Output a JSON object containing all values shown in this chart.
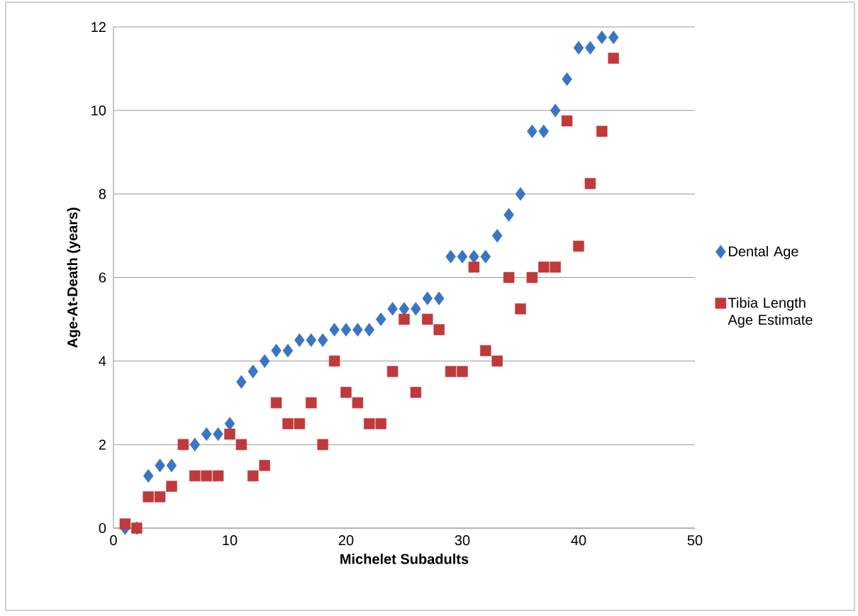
{
  "chart_data": {
    "type": "scatter",
    "xlabel": "Michelet Subadults",
    "ylabel": "Age-At-Death (years)",
    "x": [
      1,
      2,
      3,
      4,
      5,
      6,
      7,
      8,
      9,
      10,
      11,
      12,
      13,
      14,
      15,
      16,
      17,
      18,
      19,
      20,
      21,
      22,
      23,
      24,
      25,
      26,
      27,
      28,
      29,
      30,
      31,
      32,
      33,
      34,
      35,
      36,
      37,
      38,
      39,
      40,
      41,
      42,
      43
    ],
    "series": [
      {
        "name": "Dental Age",
        "color": "#3a75c4",
        "marker": "diamond",
        "values": [
          0,
          0,
          1.25,
          1.5,
          1.5,
          null,
          2,
          2.25,
          2.25,
          2.5,
          3.5,
          3.75,
          4,
          4.25,
          4.25,
          4.5,
          4.5,
          4.5,
          4.75,
          4.75,
          4.75,
          4.75,
          5,
          5.25,
          5.25,
          5.25,
          5.5,
          5.5,
          6.5,
          6.5,
          6.5,
          6.5,
          7,
          7.5,
          8,
          9.5,
          9.5,
          10,
          10.75,
          11.5,
          11.5,
          11.75,
          11.75
        ]
      },
      {
        "name": "Tibia Length Age Estimate",
        "color": "#c0393b",
        "marker": "square",
        "values": [
          0.1,
          0,
          0.75,
          0.75,
          1,
          2,
          1.25,
          1.25,
          1.25,
          2.25,
          2,
          1.25,
          1.5,
          3,
          2.5,
          2.5,
          3,
          2,
          4,
          3.25,
          3,
          2.5,
          2.5,
          3.75,
          5,
          3.25,
          5,
          4.75,
          3.75,
          3.75,
          6.25,
          4.25,
          4,
          6,
          5.25,
          6,
          6.25,
          6.25,
          9.75,
          6.75,
          8.25,
          9.5,
          11.25
        ]
      }
    ],
    "xlim": [
      0,
      50
    ],
    "xticks": [
      0,
      10,
      20,
      30,
      40,
      50
    ],
    "ylim": [
      0,
      12
    ],
    "yticks": [
      0,
      2,
      4,
      6,
      8,
      10,
      12
    ],
    "grid": "y",
    "legend": "right"
  }
}
